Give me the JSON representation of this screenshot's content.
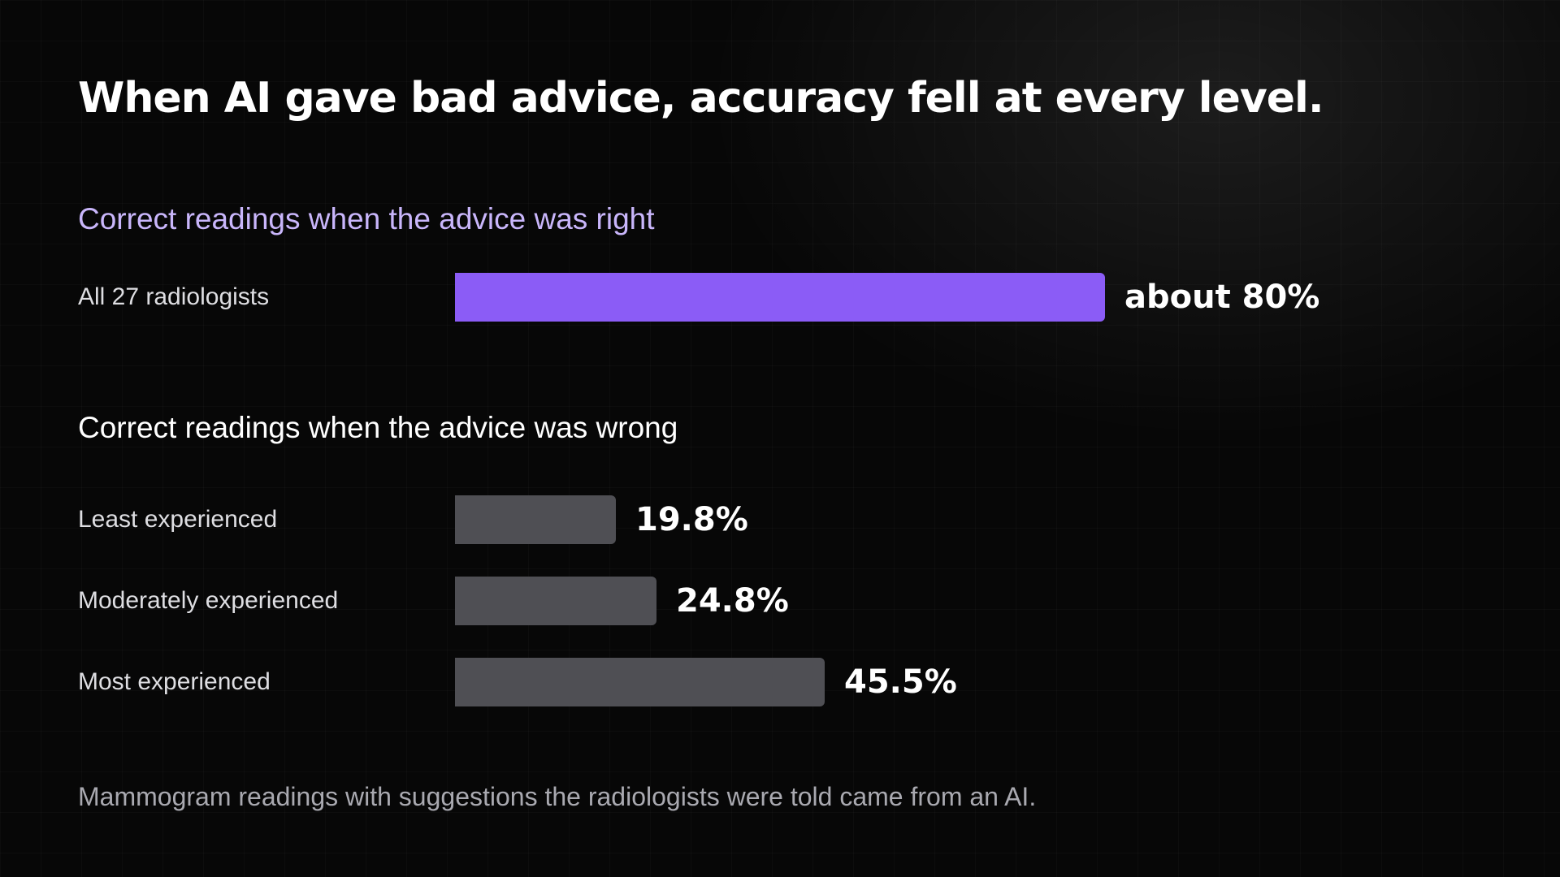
{
  "title": "When AI gave bad advice, accuracy fell at every level.",
  "footnote": "Mammogram readings with suggestions the radiologists were told came from an AI.",
  "colors": {
    "accent": "#8b5cf6",
    "accent_heading": "#c9b6fb",
    "neutral_bar": "#4f4f54",
    "background": "#070707"
  },
  "chart_data": [
    {
      "type": "bar",
      "orientation": "horizontal",
      "title": "Correct readings when the advice was right",
      "categories": [
        "All 27 radiologists"
      ],
      "values": [
        80
      ],
      "value_labels": [
        "about 80%"
      ],
      "unit": "%",
      "xlim": [
        0,
        100
      ],
      "grid": false,
      "color": "#8b5cf6"
    },
    {
      "type": "bar",
      "orientation": "horizontal",
      "title": "Correct readings when the advice was wrong",
      "categories": [
        "Least experienced",
        "Moderately experienced",
        "Most experienced"
      ],
      "values": [
        19.8,
        24.8,
        45.5
      ],
      "value_labels": [
        "19.8%",
        "24.8%",
        "45.5%"
      ],
      "unit": "%",
      "xlim": [
        0,
        100
      ],
      "grid": false,
      "color": "#4f4f54"
    }
  ]
}
